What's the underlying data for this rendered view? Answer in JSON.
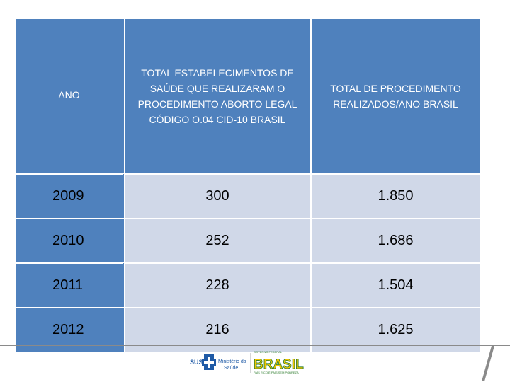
{
  "table": {
    "headers": [
      "ANO",
      "TOTAL ESTABELECIMENTOS DE SAÚDE  QUE REALIZARAM   O PROCEDIMENTO ABORTO LEGAL  CÓDIGO O.04 CID-10 BRASIL",
      "TOTAL DE PROCEDIMENTO REALIZADOS/ANO BRASIL"
    ],
    "rows": [
      [
        "2009",
        "300",
        "1.850"
      ],
      [
        "2010",
        "252",
        "1.686"
      ],
      [
        "2011",
        "228",
        "1.504"
      ],
      [
        "2012",
        "216",
        "1.625"
      ]
    ]
  },
  "footer": {
    "sus_label": "SUS",
    "ministerio_label": "Ministério da",
    "saude_label": "Saúde",
    "governo_label": "GOVERNO FEDERAL",
    "brasil_label": "BRASIL",
    "tagline": "PAÍS RICO É PAÍS SEM POBREZA"
  },
  "colors": {
    "header_blue": "#4f81bd",
    "cell_light": "#d0d8e8"
  }
}
